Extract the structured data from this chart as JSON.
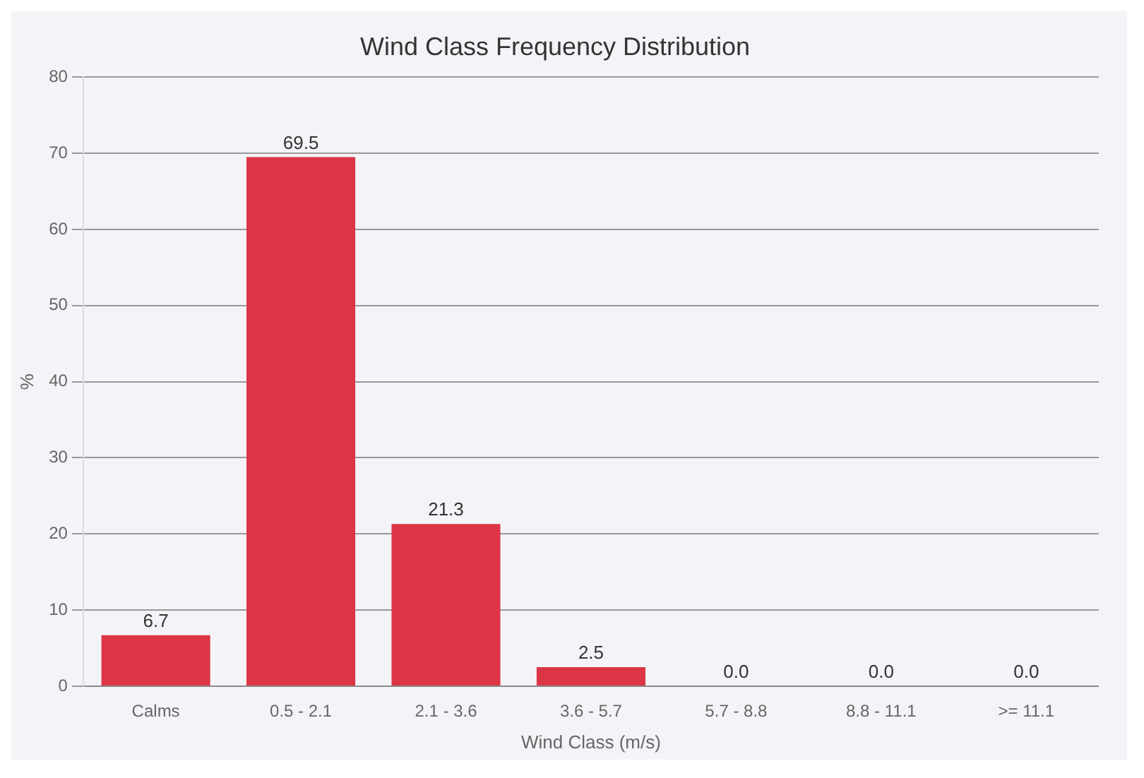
{
  "chart_data": {
    "type": "bar",
    "title": "Wind Class Frequency Distribution",
    "xlabel": "Wind Class (m/s)",
    "ylabel": "%",
    "categories": [
      "Calms",
      "0.5 - 2.1",
      "2.1 - 3.6",
      "3.6 - 5.7",
      "5.7 - 8.8",
      "8.8 - 11.1",
      ">= 11.1"
    ],
    "values": [
      6.7,
      69.5,
      21.3,
      2.5,
      0,
      0,
      0
    ],
    "value_labels": [
      "6.7",
      "69.5",
      "21.3",
      "2.5",
      "0.0",
      "0.0",
      "0.0"
    ],
    "color": "#dc3545",
    "ylim": [
      0,
      80
    ],
    "yticks": [
      0,
      10,
      20,
      30,
      40,
      50,
      60,
      70,
      80
    ],
    "grid": "y",
    "legend": false
  }
}
